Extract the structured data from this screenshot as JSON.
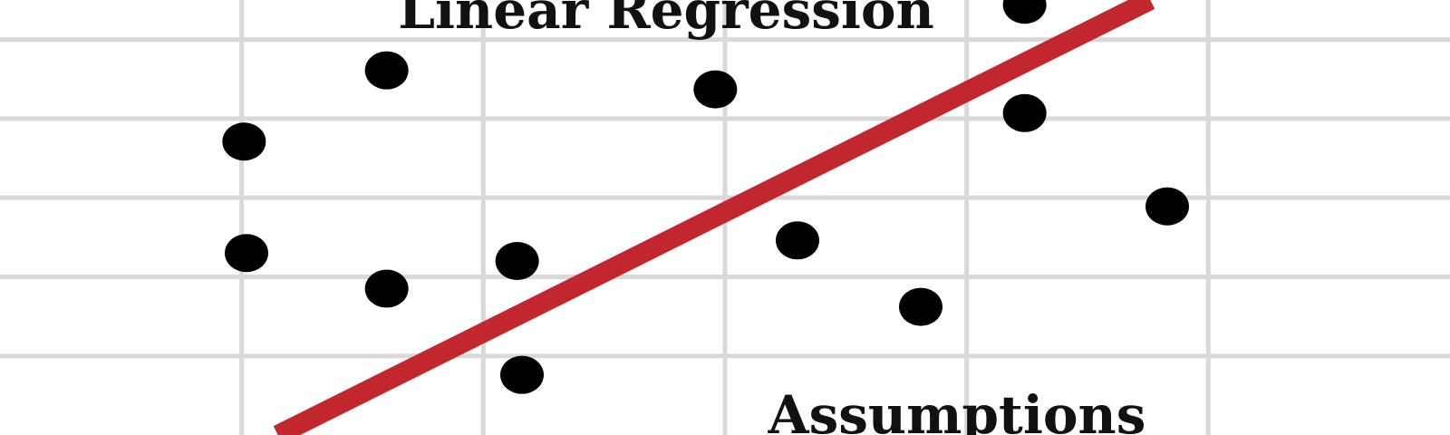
{
  "chart_data": {
    "type": "scatter",
    "title": "Linear Regression",
    "subtitle": "Assumptions",
    "xlabel": "",
    "ylabel": "",
    "xlim": [
      0,
      6
    ],
    "ylim": [
      0,
      5.5
    ],
    "grid": true,
    "colors": {
      "points": "#000000",
      "trend_line": "#c1272d",
      "grid": "#d9d9d9",
      "background": "#ffffff"
    },
    "series": [
      {
        "points": [
          {
            "x": 1.01,
            "y": 3.71
          },
          {
            "x": 1.02,
            "y": 2.3
          },
          {
            "x": 1.6,
            "y": 4.61
          },
          {
            "x": 1.6,
            "y": 1.85
          },
          {
            "x": 2.14,
            "y": 2.2
          },
          {
            "x": 2.16,
            "y": 0.76
          },
          {
            "x": 2.96,
            "y": 4.37
          },
          {
            "x": 3.3,
            "y": 2.46
          },
          {
            "x": 3.81,
            "y": 1.62
          },
          {
            "x": 4.24,
            "y": 5.44
          },
          {
            "x": 4.24,
            "y": 4.07
          },
          {
            "x": 4.83,
            "y": 2.89
          }
        ]
      }
    ],
    "trend_line": {
      "x": [
        1.15,
        4.76
      ],
      "y": [
        0,
        5.5
      ]
    }
  }
}
